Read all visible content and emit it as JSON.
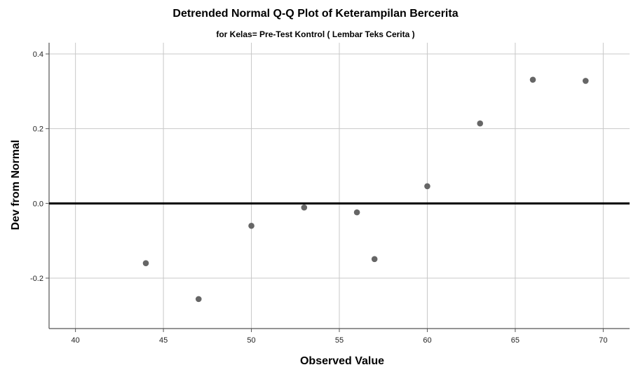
{
  "chart_data": {
    "type": "scatter",
    "title": "Detrended Normal Q-Q Plot of Keterampilan Bercerita",
    "subtitle": "for Kelas= Pre-Test Kontrol ( Lembar Teks Cerita )",
    "xlabel": "Observed Value",
    "ylabel": "Dev from Normal",
    "xlim": [
      38.5,
      71.5
    ],
    "ylim": [
      -0.335,
      0.43
    ],
    "x_ticks": [
      40,
      45,
      50,
      55,
      60,
      65,
      70
    ],
    "y_ticks": [
      -0.2,
      0.0,
      0.2,
      0.4
    ],
    "x_tick_labels": [
      "40",
      "45",
      "50",
      "55",
      "60",
      "65",
      "70"
    ],
    "y_tick_labels": [
      "-0.2",
      "0.0",
      "0.2",
      "0.4"
    ],
    "grid": true,
    "reference_line_y": 0,
    "points": [
      {
        "x": 44,
        "y": -0.16
      },
      {
        "x": 47,
        "y": -0.256
      },
      {
        "x": 50,
        "y": -0.06
      },
      {
        "x": 53,
        "y": -0.011
      },
      {
        "x": 56,
        "y": -0.024
      },
      {
        "x": 57,
        "y": -0.149
      },
      {
        "x": 60,
        "y": 0.046
      },
      {
        "x": 63,
        "y": 0.214
      },
      {
        "x": 66,
        "y": 0.331
      },
      {
        "x": 69,
        "y": 0.328
      }
    ],
    "colors": {
      "point": "#666666",
      "grid": "#c8c8c8",
      "axis": "#555555",
      "reference_line": "#000000"
    }
  }
}
